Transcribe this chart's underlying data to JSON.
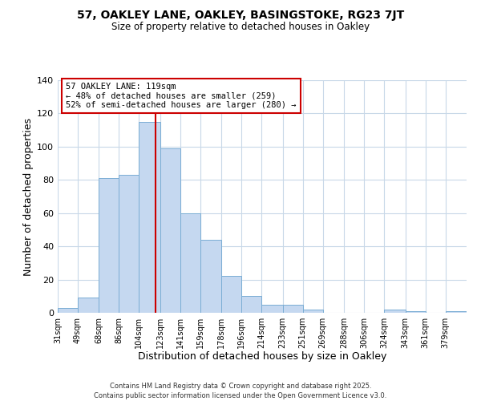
{
  "title": "57, OAKLEY LANE, OAKLEY, BASINGSTOKE, RG23 7JT",
  "subtitle": "Size of property relative to detached houses in Oakley",
  "xlabel": "Distribution of detached houses by size in Oakley",
  "ylabel": "Number of detached properties",
  "bar_color": "#c5d8f0",
  "bar_edge_color": "#7aadd4",
  "background_color": "#ffffff",
  "grid_color": "#c8d8e8",
  "vline_color": "#cc0000",
  "vline_x": 119,
  "annotation_title": "57 OAKLEY LANE: 119sqm",
  "annotation_line1": "← 48% of detached houses are smaller (259)",
  "annotation_line2": "52% of semi-detached houses are larger (280) →",
  "annotation_box_color": "#ffffff",
  "annotation_box_edge": "#cc0000",
  "bins": [
    31,
    49,
    68,
    86,
    104,
    123,
    141,
    159,
    178,
    196,
    214,
    233,
    251,
    269,
    288,
    306,
    324,
    343,
    361,
    379,
    398
  ],
  "counts": [
    3,
    9,
    81,
    83,
    115,
    99,
    60,
    44,
    22,
    10,
    5,
    5,
    2,
    0,
    0,
    0,
    2,
    1,
    0,
    1
  ],
  "ylim": [
    0,
    140
  ],
  "yticks": [
    0,
    20,
    40,
    60,
    80,
    100,
    120,
    140
  ],
  "footer_line1": "Contains HM Land Registry data © Crown copyright and database right 2025.",
  "footer_line2": "Contains public sector information licensed under the Open Government Licence v3.0."
}
